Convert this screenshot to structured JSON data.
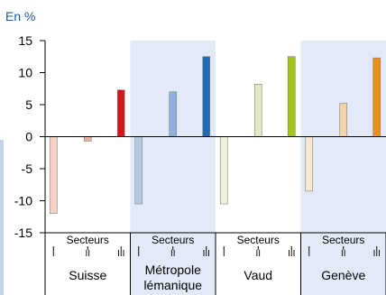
{
  "chart_data": {
    "type": "bar",
    "ylabel": "En %",
    "ylim": [
      -15,
      15
    ],
    "yticks": [
      15,
      10,
      5,
      0,
      -5,
      -10,
      -15
    ],
    "group_axis_label": "Secteurs",
    "sector_labels": [
      "I",
      "II",
      "III"
    ],
    "groups": [
      {
        "name": "Suisse",
        "label_lines": [
          "Suisse"
        ],
        "shaded": false,
        "values": [
          -12.0,
          -0.7,
          7.3
        ],
        "colors": [
          "#f6d3c6",
          "#e9b2a1",
          "#d7131e"
        ]
      },
      {
        "name": "Métropole lémanique",
        "label_lines": [
          "Métropole",
          "lémanique"
        ],
        "shaded": true,
        "values": [
          -10.5,
          7.0,
          12.5
        ],
        "colors": [
          "#b6c8e3",
          "#8fb1dc",
          "#1e6cb6"
        ]
      },
      {
        "name": "Vaud",
        "label_lines": [
          "Vaud"
        ],
        "shaded": false,
        "values": [
          -10.5,
          8.2,
          12.5
        ],
        "colors": [
          "#f0f2dc",
          "#e1ebc3",
          "#a4c41c"
        ]
      },
      {
        "name": "Genève",
        "label_lines": [
          "Genève"
        ],
        "shaded": true,
        "values": [
          -8.5,
          5.2,
          12.3
        ],
        "colors": [
          "#fbe9d3",
          "#f6d2a8",
          "#ef8e18"
        ]
      }
    ],
    "grid": false,
    "colors": {
      "axis_text": "#000000",
      "ylabel": "#1a5aa5",
      "shade": "#e3eaf7",
      "side_bar": "#c4d3ea"
    }
  }
}
